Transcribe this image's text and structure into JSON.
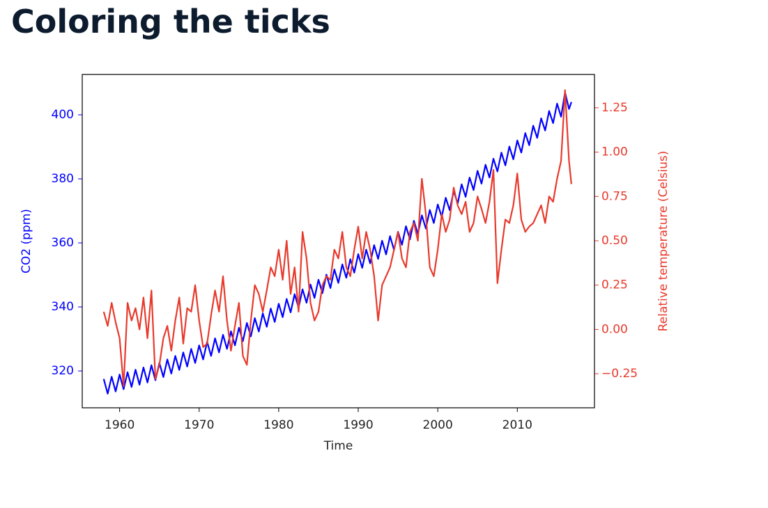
{
  "chart_data": {
    "type": "line",
    "title": "Coloring the ticks",
    "xlabel": "Time",
    "ylabel": "CO2 (ppm)",
    "y2label": "Relative temperature (Celsius)",
    "xlim": [
      1955.3,
      2019.7
    ],
    "ylim": [
      308.5,
      412.6
    ],
    "y2lim": [
      -0.442,
      1.438
    ],
    "xticks": [
      1960,
      1970,
      1980,
      1990,
      2000,
      2010
    ],
    "yticks": [
      320,
      340,
      360,
      380,
      400
    ],
    "y2ticks": [
      {
        "value": -0.25,
        "label": "−0.25"
      },
      {
        "value": 0,
        "label": "0.00"
      },
      {
        "value": 0.25,
        "label": "0.25"
      },
      {
        "value": 0.5,
        "label": "0.50"
      },
      {
        "value": 0.75,
        "label": "0.75"
      },
      {
        "value": 1,
        "label": "1.00"
      },
      {
        "value": 1.25,
        "label": "1.25"
      }
    ],
    "x": [
      1958,
      1958.5,
      1959,
      1959.5,
      1960,
      1960.5,
      1961,
      1961.5,
      1962,
      1962.5,
      1963,
      1963.5,
      1964,
      1964.5,
      1965,
      1965.5,
      1966,
      1966.5,
      1967,
      1967.5,
      1968,
      1968.5,
      1969,
      1969.5,
      1970,
      1970.5,
      1971,
      1971.5,
      1972,
      1972.5,
      1973,
      1973.5,
      1974,
      1974.5,
      1975,
      1975.5,
      1976,
      1976.5,
      1977,
      1977.5,
      1978,
      1978.5,
      1979,
      1979.5,
      1980,
      1980.5,
      1981,
      1981.5,
      1982,
      1982.5,
      1983,
      1983.5,
      1984,
      1984.5,
      1985,
      1985.5,
      1986,
      1986.5,
      1987,
      1987.5,
      1988,
      1988.5,
      1989,
      1989.5,
      1990,
      1990.5,
      1991,
      1991.5,
      1992,
      1992.5,
      1993,
      1993.5,
      1994,
      1994.5,
      1995,
      1995.5,
      1996,
      1996.5,
      1997,
      1997.5,
      1998,
      1998.5,
      1999,
      1999.5,
      2000,
      2000.5,
      2001,
      2001.5,
      2002,
      2002.5,
      2003,
      2003.5,
      2004,
      2004.5,
      2005,
      2005.5,
      2006,
      2006.5,
      2007,
      2007.5,
      2008,
      2008.5,
      2009,
      2009.5,
      2010,
      2010.5,
      2011,
      2011.5,
      2012,
      2012.5,
      2013,
      2013.5,
      2014,
      2014.5,
      2015,
      2015.5,
      2016,
      2016.5,
      2016.8
    ],
    "series": [
      {
        "name": "CO2 (ppm)",
        "color": "#0000ff",
        "values": [
          317.5,
          312.9,
          318.2,
          313.6,
          318.9,
          314.3,
          319.6,
          315.0,
          320.4,
          315.7,
          321.1,
          316.4,
          321.8,
          317.1,
          322.5,
          318.1,
          323.6,
          319.2,
          324.7,
          320.3,
          325.8,
          321.4,
          326.9,
          322.5,
          328.0,
          323.6,
          329.1,
          324.7,
          330.2,
          325.8,
          331.3,
          326.9,
          332.4,
          328.0,
          333.5,
          329.3,
          335.0,
          330.8,
          336.5,
          332.3,
          338.0,
          333.8,
          339.5,
          335.3,
          341.0,
          336.8,
          342.5,
          338.3,
          344.0,
          339.8,
          345.5,
          341.3,
          347.0,
          342.8,
          348.5,
          344.3,
          350.1,
          345.9,
          351.7,
          347.5,
          353.3,
          349.1,
          354.9,
          350.7,
          356.5,
          352.2,
          357.9,
          353.6,
          359.3,
          355.0,
          360.7,
          356.4,
          362.1,
          357.8,
          363.5,
          359.4,
          365.2,
          361.1,
          366.9,
          362.8,
          368.6,
          364.5,
          370.3,
          366.2,
          372.0,
          368.1,
          374.1,
          370.2,
          376.2,
          372.3,
          378.3,
          374.4,
          380.4,
          376.5,
          382.5,
          378.5,
          384.4,
          380.4,
          386.3,
          382.3,
          388.2,
          384.2,
          390.1,
          386.1,
          392.0,
          388.2,
          394.3,
          390.5,
          396.6,
          392.8,
          398.9,
          395.1,
          401.2,
          397.4,
          403.5,
          399.4,
          407.0,
          401.8,
          404.0
        ]
      },
      {
        "name": "Relative temperature (Celsius)",
        "color": "#e8392b",
        "axis": "y2",
        "values": [
          0.1,
          0.02,
          0.15,
          0.04,
          -0.05,
          -0.32,
          0.15,
          0.05,
          0.12,
          0.0,
          0.18,
          -0.05,
          0.22,
          -0.28,
          -0.2,
          -0.05,
          0.02,
          -0.12,
          0.05,
          0.18,
          -0.08,
          0.12,
          0.1,
          0.25,
          0.05,
          -0.1,
          -0.08,
          0.08,
          0.22,
          0.1,
          0.3,
          0.05,
          -0.12,
          0.02,
          0.15,
          -0.15,
          -0.2,
          0.05,
          0.25,
          0.2,
          0.1,
          0.22,
          0.35,
          0.3,
          0.45,
          0.28,
          0.5,
          0.2,
          0.35,
          0.1,
          0.55,
          0.4,
          0.15,
          0.05,
          0.1,
          0.25,
          0.3,
          0.28,
          0.45,
          0.4,
          0.55,
          0.35,
          0.3,
          0.45,
          0.58,
          0.4,
          0.55,
          0.45,
          0.3,
          0.05,
          0.25,
          0.3,
          0.35,
          0.45,
          0.55,
          0.4,
          0.35,
          0.55,
          0.6,
          0.5,
          0.85,
          0.65,
          0.35,
          0.3,
          0.45,
          0.65,
          0.55,
          0.62,
          0.8,
          0.7,
          0.65,
          0.72,
          0.55,
          0.6,
          0.75,
          0.68,
          0.6,
          0.72,
          0.9,
          0.26,
          0.45,
          0.62,
          0.6,
          0.7,
          0.88,
          0.62,
          0.55,
          0.58,
          0.6,
          0.65,
          0.7,
          0.6,
          0.75,
          0.72,
          0.85,
          0.95,
          1.35,
          0.95,
          0.82
        ]
      }
    ]
  }
}
